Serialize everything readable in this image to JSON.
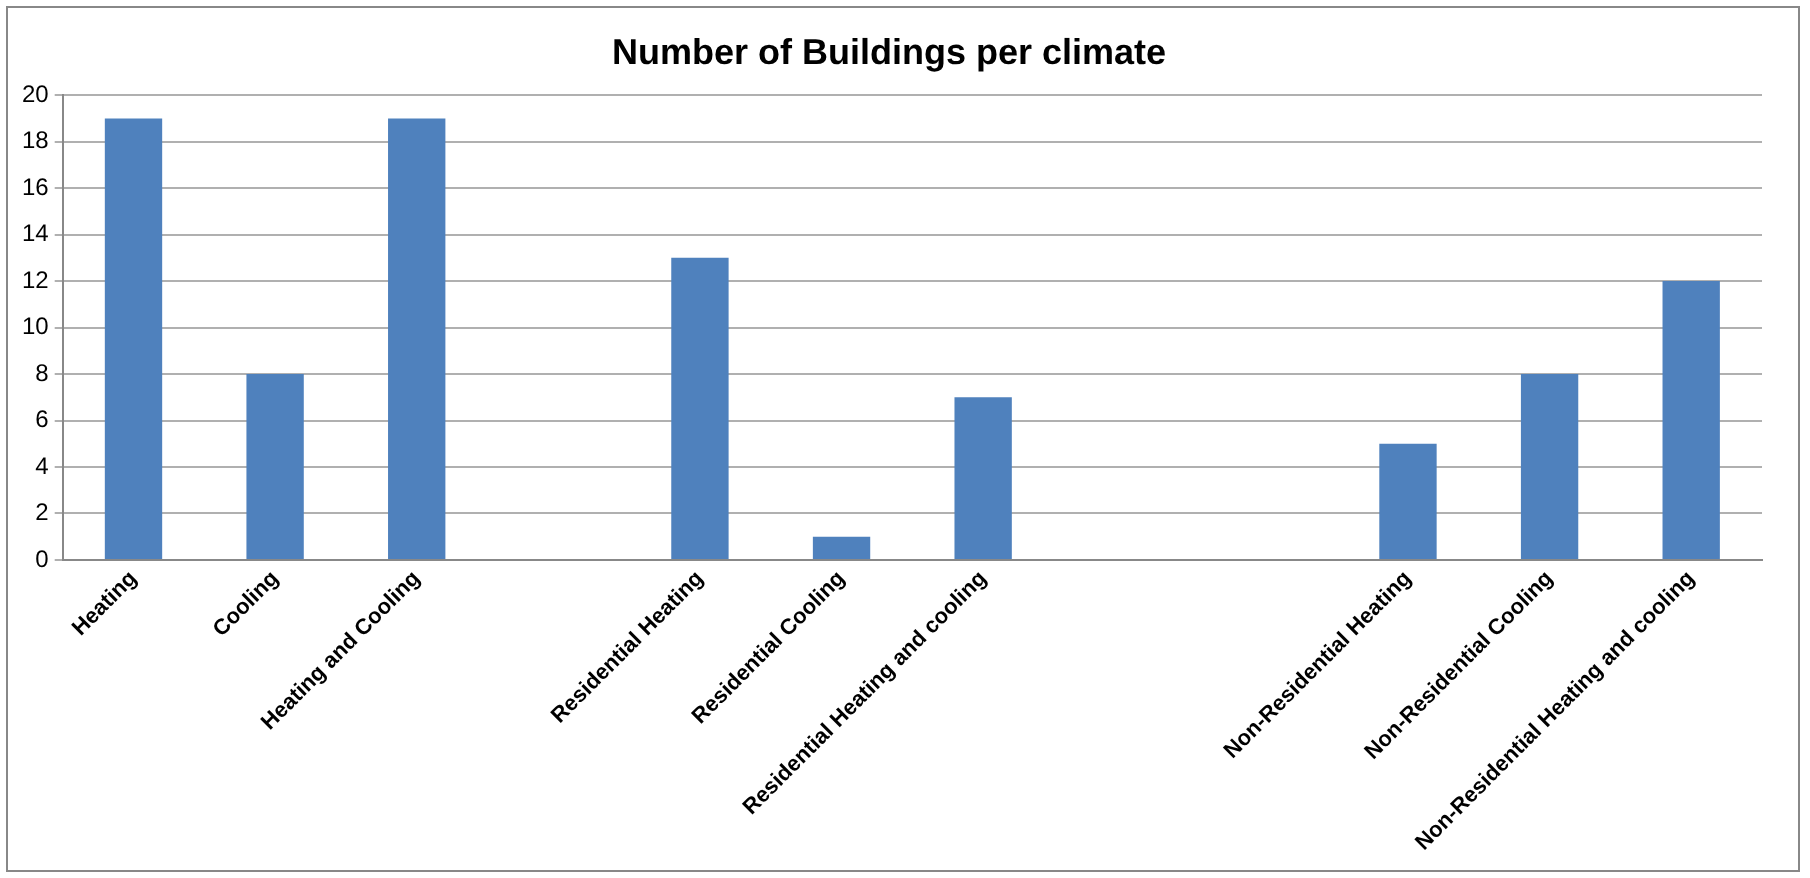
{
  "chart_data": {
    "type": "bar",
    "title": "Number of Buildings per climate",
    "categories": [
      "Heating",
      "Cooling",
      "Heating and Cooling",
      null,
      "Residential Heating",
      "Residential Cooling",
      "Residential Heating and cooling",
      null,
      null,
      "Non-Residential Heating",
      "Non-Residential Cooling",
      "Non-Residential Heating and cooling"
    ],
    "values": [
      19,
      8,
      19,
      null,
      13,
      1,
      7,
      null,
      null,
      5,
      8,
      12
    ],
    "color": "#4f81bd",
    "ylim": [
      0,
      20
    ],
    "yticks": [
      0,
      2,
      4,
      6,
      8,
      10,
      12,
      14,
      16,
      18,
      20
    ],
    "grid": "y",
    "legend": false
  }
}
